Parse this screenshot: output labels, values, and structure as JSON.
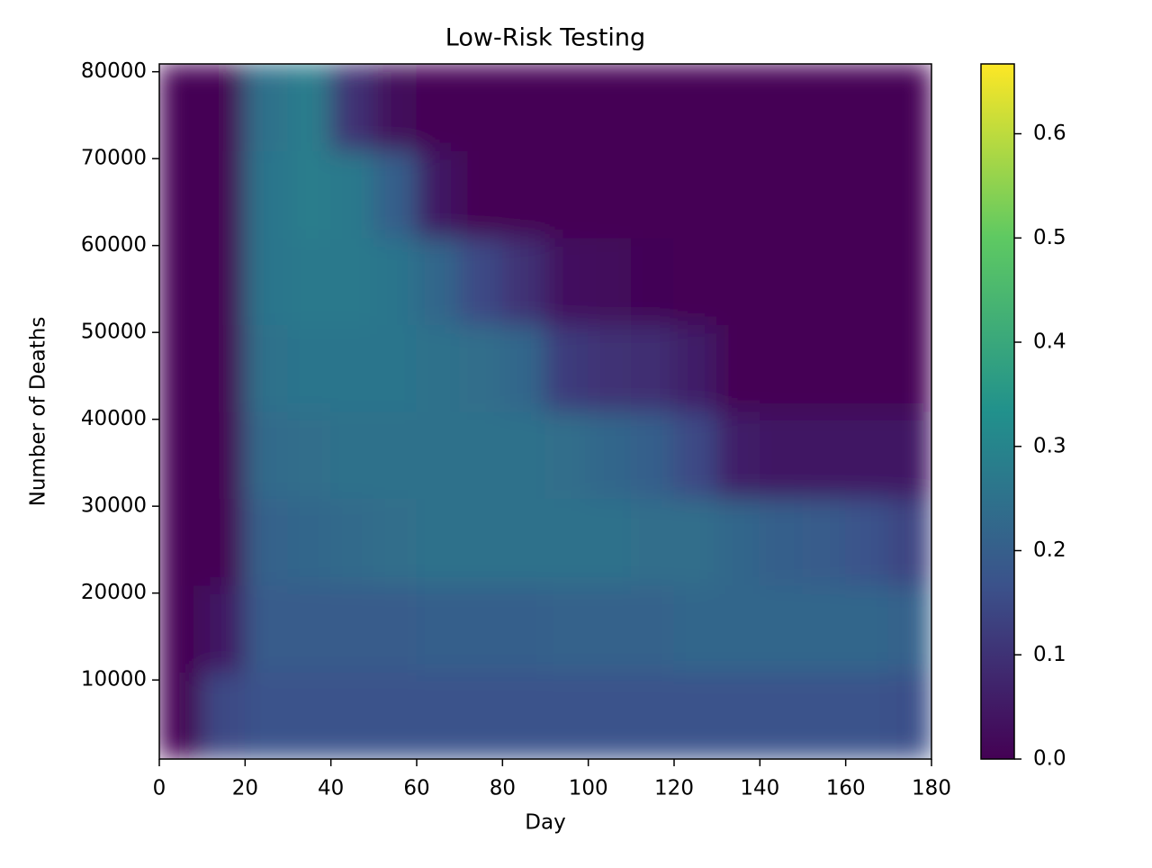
{
  "chart_data": {
    "type": "heatmap",
    "title": "Low-Risk Testing",
    "x_label": "Day",
    "y_label": "Number of Deaths",
    "xbins": [
      0,
      10,
      20,
      30,
      40,
      50,
      60,
      70,
      80,
      90,
      100,
      110,
      120,
      130,
      140,
      150,
      160,
      170,
      180
    ],
    "ybins": [
      900,
      10900,
      20900,
      30900,
      40900,
      50900,
      60900,
      70900,
      80900
    ],
    "z": [
      [
        0,
        0.15,
        0.17,
        0.17,
        0.17,
        0.17,
        0.17,
        0.17,
        0.17,
        0.17,
        0.17,
        0.17,
        0.17,
        0.17,
        0.17,
        0.17,
        0.17,
        0.16
      ],
      [
        0,
        0.05,
        0.19,
        0.19,
        0.19,
        0.19,
        0.2,
        0.2,
        0.2,
        0.21,
        0.21,
        0.21,
        0.22,
        0.22,
        0.22,
        0.22,
        0.22,
        0.21
      ],
      [
        0,
        0,
        0.21,
        0.22,
        0.23,
        0.24,
        0.25,
        0.25,
        0.25,
        0.25,
        0.25,
        0.24,
        0.24,
        0.22,
        0.2,
        0.19,
        0.17,
        0.14
      ],
      [
        0,
        0,
        0.23,
        0.24,
        0.25,
        0.25,
        0.25,
        0.25,
        0.25,
        0.24,
        0.22,
        0.2,
        0.15,
        0.06,
        0.05,
        0.05,
        0.05,
        0.05
      ],
      [
        0,
        0,
        0.25,
        0.26,
        0.26,
        0.26,
        0.25,
        0.24,
        0.22,
        0.12,
        0.1,
        0.09,
        0.06,
        0,
        0,
        0,
        0,
        0
      ],
      [
        0,
        0,
        0.26,
        0.27,
        0.27,
        0.26,
        0.22,
        0.15,
        0.1,
        0.03,
        0.02,
        0.01,
        0,
        0,
        0,
        0,
        0,
        0
      ],
      [
        0,
        0,
        0.26,
        0.28,
        0.27,
        0.2,
        0.05,
        0,
        0,
        0,
        0,
        0,
        0,
        0,
        0,
        0,
        0,
        0
      ],
      [
        0,
        0,
        0.25,
        0.28,
        0.1,
        0.02,
        0,
        0,
        0,
        0,
        0,
        0,
        0,
        0,
        0,
        0,
        0,
        0
      ]
    ],
    "colormap": "viridis",
    "xlim": [
      0,
      180
    ],
    "xticks": [
      0,
      20,
      40,
      60,
      80,
      100,
      120,
      140,
      160,
      180
    ],
    "ylim": [
      900,
      80900
    ],
    "yticks": [
      10000,
      20000,
      30000,
      40000,
      50000,
      60000,
      70000,
      80000
    ],
    "clim": [
      0,
      0.667
    ],
    "cticks": [
      0.0,
      0.1,
      0.2,
      0.3,
      0.4,
      0.5,
      0.6
    ]
  }
}
